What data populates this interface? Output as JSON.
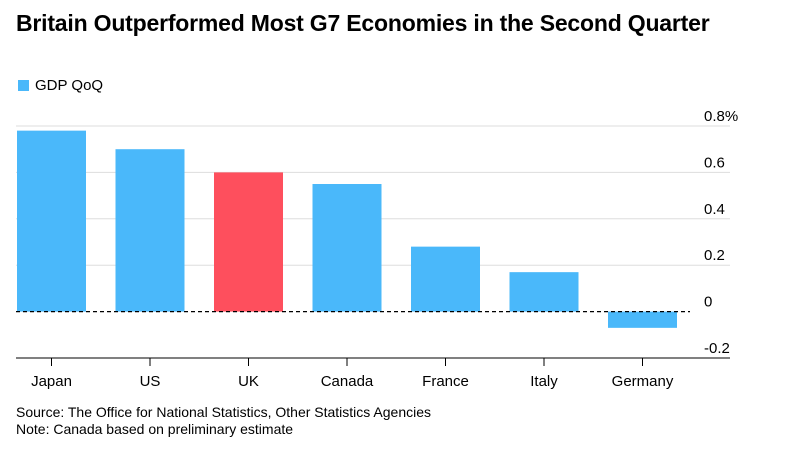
{
  "chart_data": {
    "type": "bar",
    "title": "Britain Outperformed Most G7 Economies in the Second Quarter",
    "categories": [
      "Japan",
      "US",
      "UK",
      "Canada",
      "France",
      "Italy",
      "Germany"
    ],
    "series": [
      {
        "name": "GDP QoQ",
        "values": [
          0.78,
          0.7,
          0.6,
          0.55,
          0.28,
          0.17,
          -0.07
        ]
      }
    ],
    "highlight_category": "UK",
    "y_ticks": [
      0.8,
      0.6,
      0.4,
      0.2,
      0,
      -0.2
    ],
    "y_tick_labels": [
      "0.8%",
      "0.6",
      "0.4",
      "0.2",
      "0",
      "-0.2"
    ],
    "ylim": [
      -0.2,
      0.8
    ],
    "grid": true,
    "legend_position": "top-left",
    "colors": {
      "bar": "#4ab8fa",
      "highlight": "#fe4f5d",
      "grid": "#dddddd",
      "zero_line": "#000000"
    }
  },
  "source": {
    "line1": "Source: The Office for National Statistics, Other Statistics Agencies",
    "line2": "Note: Canada based on preliminary estimate"
  }
}
